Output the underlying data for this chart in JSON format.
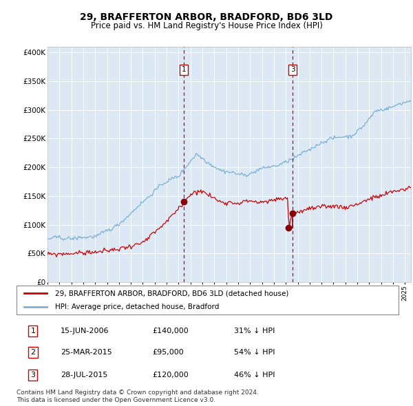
{
  "title": "29, BRAFFERTON ARBOR, BRADFORD, BD6 3LD",
  "subtitle": "Price paid vs. HM Land Registry's House Price Index (HPI)",
  "title_fontsize": 10,
  "subtitle_fontsize": 8.5,
  "bg_color": "#dce9f5",
  "ylim": [
    0,
    410000
  ],
  "yticks": [
    0,
    50000,
    100000,
    150000,
    200000,
    250000,
    300000,
    350000,
    400000
  ],
  "ytick_labels": [
    "£0",
    "£50K",
    "£100K",
    "£150K",
    "£200K",
    "£250K",
    "£300K",
    "£350K",
    "£400K"
  ],
  "hpi_color": "#7bafd4",
  "price_color": "#cc0000",
  "marker_color": "#8b0000",
  "vline_color": "#cc0000",
  "t1_x": 2006.46,
  "t1_y": 140000,
  "t2_x": 2015.23,
  "t2_y": 95000,
  "t3_x": 2015.57,
  "t3_y": 120000,
  "legend_entries": [
    "29, BRAFFERTON ARBOR, BRADFORD, BD6 3LD (detached house)",
    "HPI: Average price, detached house, Bradford"
  ],
  "table_rows": [
    {
      "num": "1",
      "date": "15-JUN-2006",
      "price": "£140,000",
      "hpi": "31% ↓ HPI"
    },
    {
      "num": "2",
      "date": "25-MAR-2015",
      "price": "£95,000",
      "hpi": "54% ↓ HPI"
    },
    {
      "num": "3",
      "date": "28-JUL-2015",
      "price": "£120,000",
      "hpi": "46% ↓ HPI"
    }
  ],
  "footnote": "Contains HM Land Registry data © Crown copyright and database right 2024.\nThis data is licensed under the Open Government Licence v3.0.",
  "xmin": 1995.0,
  "xmax": 2025.5,
  "hpi_seed": 42,
  "price_seed": 99
}
